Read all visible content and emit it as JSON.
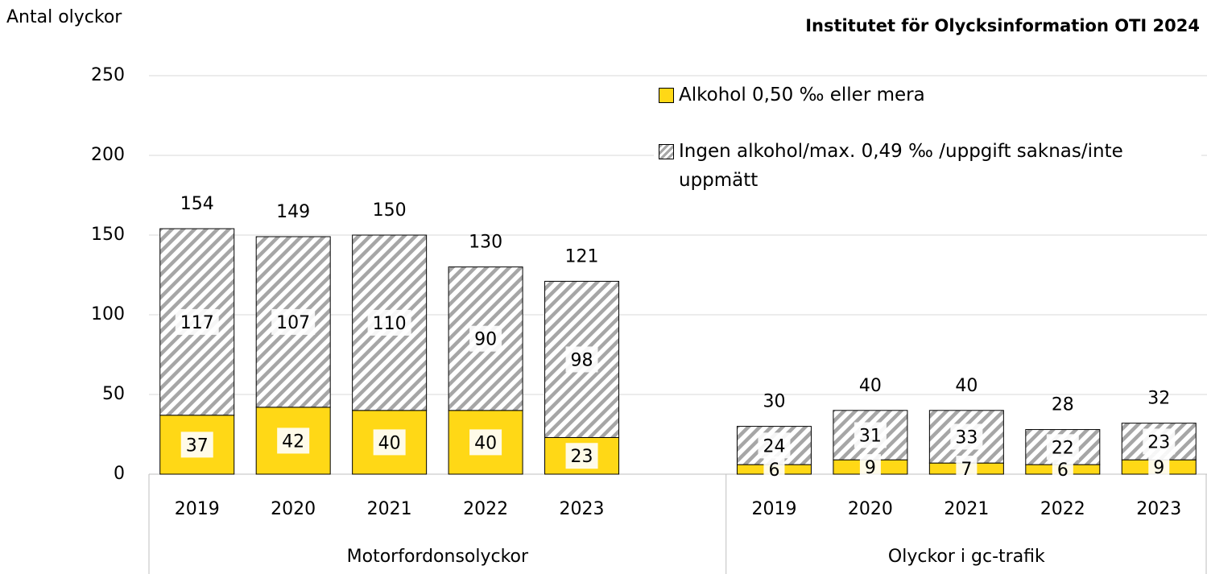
{
  "chart_data": {
    "type": "stacked_bar",
    "title": "Institutet för Olycksinformation OTI 2024",
    "ylabel": "Antal olyckor",
    "groups": [
      {
        "name": "Motorfordonsolyckor",
        "categories": [
          "2019",
          "2020",
          "2021",
          "2022",
          "2023"
        ]
      },
      {
        "name": "Olyckor i gc-trafik",
        "categories": [
          "2019",
          "2020",
          "2021",
          "2022",
          "2023"
        ]
      }
    ],
    "series": [
      {
        "name": "Alkohol 0,50 ‰ eller mera",
        "color": "#ffd816",
        "hatch": false,
        "values": [
          37,
          42,
          40,
          40,
          23,
          6,
          9,
          7,
          6,
          9
        ]
      },
      {
        "name": "Ingen alkohol/max. 0,49 ‰ /uppgift saknas/inte uppmätt",
        "color": "#a6a6a6",
        "hatch": true,
        "values": [
          117,
          107,
          110,
          90,
          98,
          24,
          31,
          33,
          22,
          23
        ]
      }
    ],
    "totals": [
      154,
      149,
      150,
      130,
      121,
      30,
      40,
      40,
      28,
      32
    ],
    "ylim": [
      0,
      250
    ],
    "yticks": [
      0,
      50,
      100,
      150,
      200,
      250
    ],
    "grid": true,
    "legend": "top-right"
  }
}
